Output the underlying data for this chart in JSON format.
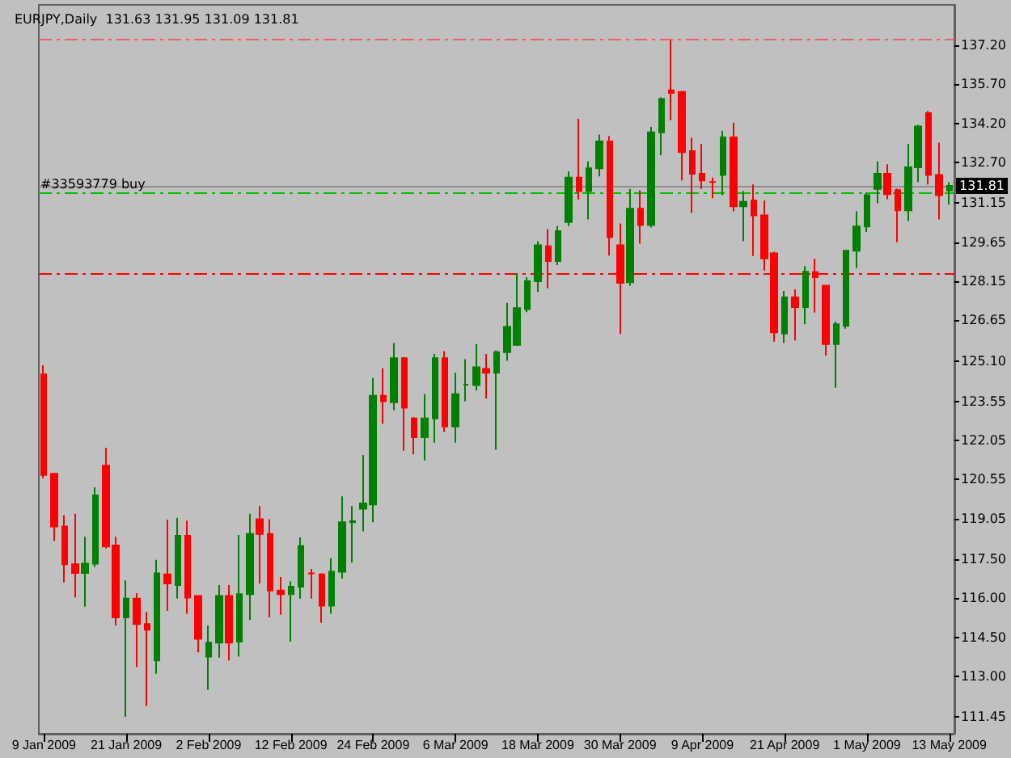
{
  "chart_data": {
    "type": "candlestick",
    "title": "EURJPY,Daily",
    "subtitle": "131.63 131.95 131.09 131.81",
    "categories": [
      "9 Jan 2009",
      null,
      null,
      null,
      null,
      null,
      null,
      null,
      "21 Jan 2009",
      null,
      null,
      null,
      null,
      null,
      null,
      null,
      "2 Feb 2009",
      null,
      null,
      null,
      null,
      null,
      null,
      null,
      "12 Feb 2009",
      null,
      null,
      null,
      null,
      null,
      null,
      null,
      "24 Feb 2009",
      null,
      null,
      null,
      null,
      null,
      null,
      null,
      "6 Mar 2009",
      null,
      null,
      null,
      null,
      null,
      null,
      null,
      "18 Mar 2009",
      null,
      null,
      null,
      null,
      null,
      null,
      null,
      "30 Mar 2009",
      null,
      null,
      null,
      null,
      null,
      null,
      null,
      "9 Apr 2009",
      null,
      null,
      null,
      null,
      null,
      null,
      null,
      "21 Apr 2009",
      null,
      null,
      null,
      null,
      null,
      null,
      null,
      "1 May 2009",
      null,
      null,
      null,
      null,
      null,
      null,
      null,
      "13 May 2009"
    ],
    "ohlc": [
      [
        124.58,
        124.93,
        120.6,
        120.72
      ],
      [
        120.77,
        120.8,
        118.19,
        118.75
      ],
      [
        118.75,
        119.18,
        116.6,
        117.3
      ],
      [
        117.3,
        119.24,
        116.02,
        116.97
      ],
      [
        116.97,
        118.35,
        115.67,
        117.32
      ],
      [
        117.32,
        120.25,
        117.2,
        119.94
      ],
      [
        121.08,
        121.76,
        117.9,
        117.98
      ],
      [
        118.02,
        118.35,
        114.95,
        115.26
      ],
      [
        115.26,
        116.68,
        111.45,
        115.98
      ],
      [
        115.98,
        116.19,
        113.36,
        115.01
      ],
      [
        115.01,
        115.47,
        111.86,
        114.79
      ],
      [
        113.61,
        117.47,
        113.1,
        116.95
      ],
      [
        116.91,
        119.01,
        115.51,
        116.56
      ],
      [
        116.5,
        119.08,
        115.98,
        118.39
      ],
      [
        118.39,
        118.97,
        115.4,
        116.02
      ],
      [
        116.08,
        116.1,
        113.92,
        114.44
      ],
      [
        113.76,
        114.95,
        112.48,
        114.29
      ],
      [
        114.29,
        116.5,
        113.72,
        116.08
      ],
      [
        116.08,
        116.5,
        113.61,
        114.29
      ],
      [
        114.33,
        118.42,
        113.76,
        116.15
      ],
      [
        116.15,
        119.24,
        115.16,
        118.46
      ],
      [
        119.03,
        119.53,
        116.56,
        118.46
      ],
      [
        118.46,
        119.03,
        115.26,
        116.29
      ],
      [
        116.29,
        116.81,
        115.36,
        116.15
      ],
      [
        116.15,
        116.64,
        114.33,
        116.44
      ],
      [
        116.44,
        118.33,
        115.98,
        118.0
      ],
      [
        116.95,
        117.12,
        115.98,
        116.95
      ],
      [
        116.91,
        116.95,
        115.05,
        115.71
      ],
      [
        115.71,
        117.53,
        115.4,
        117.01
      ],
      [
        117.01,
        119.9,
        116.75,
        118.91
      ],
      [
        118.91,
        119.53,
        117.36,
        118.95
      ],
      [
        119.43,
        121.49,
        118.56,
        119.63
      ],
      [
        119.59,
        124.44,
        118.91,
        123.76
      ],
      [
        123.76,
        124.81,
        122.68,
        123.55
      ],
      [
        123.51,
        125.78,
        123.2,
        125.2
      ],
      [
        125.2,
        125.25,
        121.65,
        123.3
      ],
      [
        122.89,
        122.95,
        121.51,
        122.17
      ],
      [
        122.17,
        123.82,
        121.28,
        122.89
      ],
      [
        122.89,
        125.36,
        121.96,
        125.2
      ],
      [
        125.2,
        125.47,
        122.37,
        122.58
      ],
      [
        122.58,
        124.64,
        121.96,
        123.82
      ],
      [
        124.19,
        125.16,
        123.55,
        124.19
      ],
      [
        124.17,
        125.74,
        123.96,
        124.85
      ],
      [
        124.79,
        125.36,
        123.65,
        124.64
      ],
      [
        124.64,
        125.5,
        121.69,
        125.43
      ],
      [
        125.43,
        127.32,
        125.1,
        126.4
      ],
      [
        125.71,
        128.46,
        125.67,
        127.12
      ],
      [
        127.08,
        128.31,
        126.97,
        128.15
      ],
      [
        128.15,
        129.69,
        127.74,
        129.53
      ],
      [
        129.49,
        130.15,
        127.88,
        128.93
      ],
      [
        128.93,
        130.27,
        128.77,
        130.07
      ],
      [
        130.42,
        132.37,
        130.27,
        132.13
      ],
      [
        132.13,
        134.38,
        131.28,
        131.61
      ],
      [
        131.61,
        132.75,
        130.52,
        132.48
      ],
      [
        132.48,
        133.78,
        132.17,
        133.51
      ],
      [
        133.51,
        133.72,
        129.14,
        129.84
      ],
      [
        129.53,
        130.37,
        126.13,
        128.09
      ],
      [
        128.11,
        131.69,
        127.98,
        130.93
      ],
      [
        130.93,
        131.65,
        129.59,
        130.31
      ],
      [
        130.31,
        134.07,
        130.21,
        133.86
      ],
      [
        133.86,
        135.2,
        132.99,
        135.14
      ],
      [
        135.47,
        137.39,
        134.33,
        135.37
      ],
      [
        135.41,
        135.45,
        132.02,
        133.1
      ],
      [
        133.14,
        133.65,
        130.77,
        132.27
      ],
      [
        132.27,
        133.41,
        131.69,
        132.02
      ],
      [
        131.96,
        132.13,
        131.34,
        131.96
      ],
      [
        132.23,
        133.92,
        131.45,
        133.67
      ],
      [
        133.67,
        134.23,
        130.83,
        131.03
      ],
      [
        131.03,
        131.61,
        129.69,
        131.2
      ],
      [
        131.24,
        131.86,
        129.12,
        130.68
      ],
      [
        130.68,
        131.24,
        128.56,
        129.03
      ],
      [
        129.22,
        129.28,
        125.84,
        126.19
      ],
      [
        126.15,
        127.78,
        125.78,
        127.53
      ],
      [
        127.53,
        127.84,
        125.88,
        127.16
      ],
      [
        127.16,
        128.73,
        126.5,
        128.52
      ],
      [
        128.5,
        129.01,
        126.95,
        128.31
      ],
      [
        127.98,
        128.0,
        125.3,
        125.74
      ],
      [
        125.74,
        126.6,
        124.07,
        126.5
      ],
      [
        126.44,
        129.35,
        126.33,
        129.32
      ],
      [
        129.32,
        130.83,
        128.66,
        130.25
      ],
      [
        130.25,
        131.55,
        130.04,
        131.45
      ],
      [
        131.69,
        132.75,
        131.14,
        132.27
      ],
      [
        132.27,
        132.64,
        131.3,
        131.49
      ],
      [
        131.65,
        131.7,
        129.65,
        130.87
      ],
      [
        130.87,
        133.41,
        130.46,
        132.52
      ],
      [
        132.52,
        134.15,
        131.96,
        134.09
      ],
      [
        134.6,
        134.68,
        131.86,
        132.23
      ],
      [
        132.23,
        133.47,
        130.52,
        131.45
      ],
      [
        131.63,
        131.95,
        131.09,
        131.81
      ]
    ],
    "colors": [
      "#ff0000",
      "#ff0000",
      "#ff0000",
      "#ff0000",
      "#008000",
      "#008000",
      "#ff0000",
      "#ff0000",
      "#008000",
      "#ff0000",
      "#ff0000",
      "#008000",
      "#ff0000",
      "#008000",
      "#ff0000",
      "#ff0000",
      "#008000",
      "#008000",
      "#ff0000",
      "#008000",
      "#008000",
      "#ff0000",
      "#ff0000",
      "#ff0000",
      "#008000",
      "#008000",
      "#ff0000",
      "#ff0000",
      "#008000",
      "#008000",
      "#008000",
      "#008000",
      "#008000",
      "#ff0000",
      "#008000",
      "#ff0000",
      "#ff0000",
      "#008000",
      "#008000",
      "#ff0000",
      "#008000",
      "#008000",
      "#008000",
      "#ff0000",
      "#008000",
      "#008000",
      "#008000",
      "#008000",
      "#008000",
      "#ff0000",
      "#008000",
      "#008000",
      "#ff0000",
      "#008000",
      "#008000",
      "#ff0000",
      "#ff0000",
      "#008000",
      "#ff0000",
      "#008000",
      "#008000",
      "#ff0000",
      "#ff0000",
      "#ff0000",
      "#ff0000",
      "#ff0000",
      "#008000",
      "#ff0000",
      "#008000",
      "#ff0000",
      "#ff0000",
      "#ff0000",
      "#008000",
      "#ff0000",
      "#008000",
      "#ff0000",
      "#ff0000",
      "#008000",
      "#008000",
      "#008000",
      "#008000",
      "#008000",
      "#ff0000",
      "#ff0000",
      "#008000",
      "#008000",
      "#ff0000",
      "#ff0000",
      "#008000"
    ],
    "ylim": [
      110.8,
      138.75
    ],
    "yticks": [
      {
        "value": 137.2,
        "label": "137.20"
      },
      {
        "value": 135.7,
        "label": "135.70"
      },
      {
        "value": 134.2,
        "label": "134.20"
      },
      {
        "value": 132.7,
        "label": "132.70"
      },
      {
        "value": 131.15,
        "label": "131.15"
      },
      {
        "value": 129.65,
        "label": "129.65"
      },
      {
        "value": 128.15,
        "label": "128.15"
      },
      {
        "value": 126.65,
        "label": "126.65"
      },
      {
        "value": 125.1,
        "label": "125.10"
      },
      {
        "value": 123.55,
        "label": "123.55"
      },
      {
        "value": 122.05,
        "label": "122.05"
      },
      {
        "value": 120.55,
        "label": "120.55"
      },
      {
        "value": 119.05,
        "label": "119.05"
      },
      {
        "value": 117.5,
        "label": "117.50"
      },
      {
        "value": 116.0,
        "label": "116.00"
      },
      {
        "value": 114.5,
        "label": "114.50"
      },
      {
        "value": 113.0,
        "label": "113.00"
      },
      {
        "value": 111.45,
        "label": "111.45"
      }
    ],
    "ref_lines": [
      {
        "axis": "y",
        "value": 137.45,
        "color": "#f06060",
        "line_style": "dashed"
      },
      {
        "axis": "y",
        "value": 131.57,
        "label": "#33593779 buy",
        "color": "#00c000",
        "line_style": "dashed"
      },
      {
        "axis": "y",
        "value": 131.81,
        "label": "131.81",
        "color": "#909090",
        "line_style": "solid"
      },
      {
        "axis": "y",
        "value": 128.45,
        "color": "#ff0000",
        "line_style": "dashed"
      }
    ],
    "grid": false
  }
}
